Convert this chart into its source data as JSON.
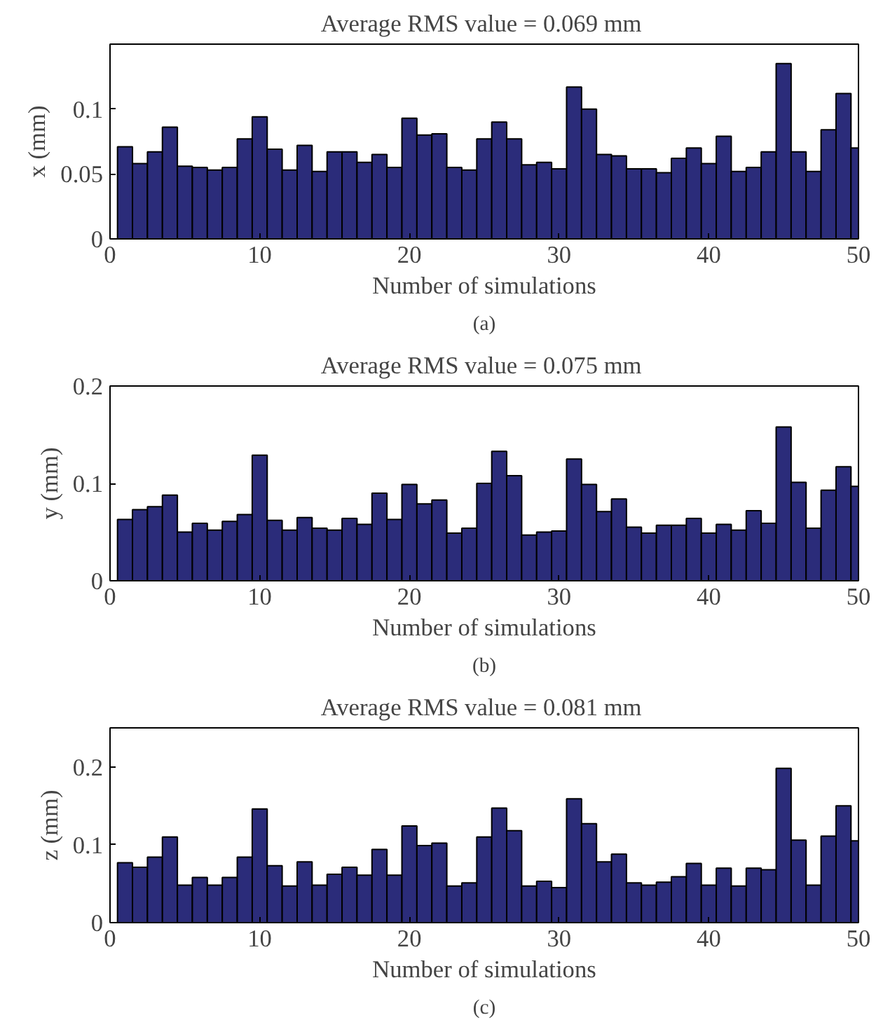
{
  "chart_data": [
    {
      "type": "bar",
      "title": "Average RMS value =  0.069 mm",
      "xlabel": "Number of simulations",
      "ylabel": "x (mm)",
      "annotations": [
        "(a)"
      ],
      "color": "#2b2c7a",
      "grid": false,
      "x": [
        1,
        2,
        3,
        4,
        5,
        6,
        7,
        8,
        9,
        10,
        11,
        12,
        13,
        14,
        15,
        16,
        17,
        18,
        19,
        20,
        21,
        22,
        23,
        24,
        25,
        26,
        27,
        28,
        29,
        30,
        31,
        32,
        33,
        34,
        35,
        36,
        37,
        38,
        39,
        40,
        41,
        42,
        43,
        44,
        45,
        46,
        47,
        48,
        49,
        50
      ],
      "values": [
        0.071,
        0.058,
        0.067,
        0.086,
        0.056,
        0.055,
        0.053,
        0.055,
        0.077,
        0.094,
        0.069,
        0.053,
        0.072,
        0.052,
        0.067,
        0.067,
        0.059,
        0.065,
        0.055,
        0.093,
        0.08,
        0.081,
        0.055,
        0.053,
        0.077,
        0.09,
        0.077,
        0.057,
        0.059,
        0.054,
        0.117,
        0.1,
        0.065,
        0.064,
        0.054,
        0.054,
        0.051,
        0.062,
        0.07,
        0.058,
        0.079,
        0.052,
        0.055,
        0.067,
        0.135,
        0.067,
        0.052,
        0.084,
        0.112,
        0.07
      ],
      "xlim": [
        0,
        50
      ],
      "xticks": [
        0,
        10,
        20,
        30,
        40,
        50
      ],
      "ylim": [
        0,
        0.15
      ],
      "yticks": [
        0,
        0.05,
        0.1
      ]
    },
    {
      "type": "bar",
      "title": "Average RMS value =  0.075 mm",
      "xlabel": "Number of simulations",
      "ylabel": "y (mm)",
      "annotations": [
        "(b)"
      ],
      "color": "#2b2c7a",
      "grid": false,
      "x": [
        1,
        2,
        3,
        4,
        5,
        6,
        7,
        8,
        9,
        10,
        11,
        12,
        13,
        14,
        15,
        16,
        17,
        18,
        19,
        20,
        21,
        22,
        23,
        24,
        25,
        26,
        27,
        28,
        29,
        30,
        31,
        32,
        33,
        34,
        35,
        36,
        37,
        38,
        39,
        40,
        41,
        42,
        43,
        44,
        45,
        46,
        47,
        48,
        49,
        50
      ],
      "values": [
        0.063,
        0.073,
        0.076,
        0.088,
        0.05,
        0.059,
        0.052,
        0.061,
        0.068,
        0.129,
        0.062,
        0.052,
        0.065,
        0.054,
        0.052,
        0.064,
        0.058,
        0.09,
        0.063,
        0.099,
        0.079,
        0.083,
        0.049,
        0.054,
        0.1,
        0.133,
        0.108,
        0.047,
        0.05,
        0.051,
        0.125,
        0.099,
        0.071,
        0.084,
        0.055,
        0.049,
        0.057,
        0.057,
        0.064,
        0.049,
        0.058,
        0.052,
        0.072,
        0.059,
        0.158,
        0.101,
        0.054,
        0.093,
        0.117,
        0.097
      ],
      "xlim": [
        0,
        50
      ],
      "xticks": [
        0,
        10,
        20,
        30,
        40,
        50
      ],
      "ylim": [
        0,
        0.2
      ],
      "yticks": [
        0,
        0.1,
        0.2
      ]
    },
    {
      "type": "bar",
      "title": "Average RMS value =  0.081 mm",
      "xlabel": "Number of simulations",
      "ylabel": "z (mm)",
      "annotations": [
        "(c)"
      ],
      "color": "#2b2c7a",
      "grid": false,
      "x": [
        1,
        2,
        3,
        4,
        5,
        6,
        7,
        8,
        9,
        10,
        11,
        12,
        13,
        14,
        15,
        16,
        17,
        18,
        19,
        20,
        21,
        22,
        23,
        24,
        25,
        26,
        27,
        28,
        29,
        30,
        31,
        32,
        33,
        34,
        35,
        36,
        37,
        38,
        39,
        40,
        41,
        42,
        43,
        44,
        45,
        46,
        47,
        48,
        49,
        50
      ],
      "values": [
        0.077,
        0.071,
        0.084,
        0.11,
        0.048,
        0.058,
        0.048,
        0.058,
        0.084,
        0.146,
        0.073,
        0.047,
        0.078,
        0.048,
        0.062,
        0.071,
        0.061,
        0.094,
        0.061,
        0.124,
        0.099,
        0.102,
        0.047,
        0.051,
        0.11,
        0.147,
        0.118,
        0.047,
        0.053,
        0.045,
        0.159,
        0.127,
        0.078,
        0.088,
        0.051,
        0.048,
        0.052,
        0.059,
        0.076,
        0.048,
        0.07,
        0.047,
        0.07,
        0.068,
        0.198,
        0.106,
        0.048,
        0.111,
        0.15,
        0.105
      ],
      "xlim": [
        0,
        50
      ],
      "xticks": [
        0,
        10,
        20,
        30,
        40,
        50
      ],
      "ylim": [
        0,
        0.25
      ],
      "yticks": [
        0,
        0.1,
        0.2
      ]
    }
  ]
}
